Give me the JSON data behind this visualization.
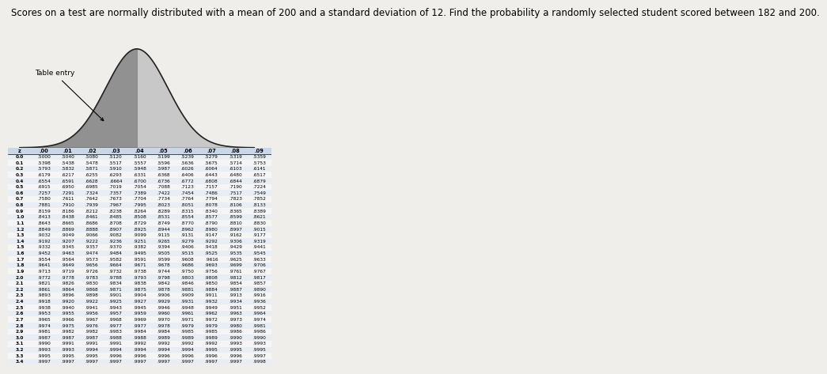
{
  "title": "Scores on a test are normally distributed with a mean of 200 and a standard deviation of 12. Find the probability a randomly selected student scored between 182 and 200.",
  "title_fontsize": 8.5,
  "table_entry_label": "Table entry",
  "z_label": "z",
  "bg_color": "#f0eeeb",
  "z_col_header": [
    "z",
    ".00",
    ".01",
    ".02",
    ".03",
    ".04",
    ".05",
    ".06",
    ".07",
    ".08",
    ".09"
  ],
  "table_data": [
    [
      "0.0",
      ".5000",
      ".5040",
      ".5080",
      ".5120",
      ".5160",
      ".5199",
      ".5239",
      ".5279",
      ".5319",
      ".5359"
    ],
    [
      "0.1",
      ".5398",
      ".5438",
      ".5478",
      ".5517",
      ".5557",
      ".5596",
      ".5636",
      ".5675",
      ".5714",
      ".5753"
    ],
    [
      "0.2",
      ".5793",
      ".5832",
      ".5871",
      ".5910",
      ".5948",
      ".5987",
      ".6026",
      ".6064",
      ".6103",
      ".6141"
    ],
    [
      "0.3",
      ".6179",
      ".6217",
      ".6255",
      ".6293",
      ".6331",
      ".6368",
      ".6406",
      ".6443",
      ".6480",
      ".6517"
    ],
    [
      "0.4",
      ".6554",
      ".6591",
      ".6628",
      ".6664",
      ".6700",
      ".6736",
      ".6772",
      ".6808",
      ".6844",
      ".6879"
    ],
    [
      "0.5",
      ".6915",
      ".6950",
      ".6985",
      ".7019",
      ".7054",
      ".7088",
      ".7123",
      ".7157",
      ".7190",
      ".7224"
    ],
    [
      "0.6",
      ".7257",
      ".7291",
      ".7324",
      ".7357",
      ".7389",
      ".7422",
      ".7454",
      ".7486",
      ".7517",
      ".7549"
    ],
    [
      "0.7",
      ".7580",
      ".7611",
      ".7642",
      ".7673",
      ".7704",
      ".7734",
      ".7764",
      ".7794",
      ".7823",
      ".7852"
    ],
    [
      "0.8",
      ".7881",
      ".7910",
      ".7939",
      ".7967",
      ".7995",
      ".8023",
      ".8051",
      ".8078",
      ".8106",
      ".8133"
    ],
    [
      "0.9",
      ".8159",
      ".8186",
      ".8212",
      ".8238",
      ".8264",
      ".8289",
      ".8315",
      ".8340",
      ".8365",
      ".8389"
    ],
    [
      "1.0",
      ".8413",
      ".8438",
      ".8461",
      ".8485",
      ".8508",
      ".8531",
      ".8554",
      ".8577",
      ".8599",
      ".8621"
    ],
    [
      "1.1",
      ".8643",
      ".8665",
      ".8686",
      ".8708",
      ".8729",
      ".8749",
      ".8770",
      ".8790",
      ".8810",
      ".8830"
    ],
    [
      "1.2",
      ".8849",
      ".8869",
      ".8888",
      ".8907",
      ".8925",
      ".8944",
      ".8962",
      ".8980",
      ".8997",
      ".9015"
    ],
    [
      "1.3",
      ".9032",
      ".9049",
      ".9066",
      ".9082",
      ".9099",
      ".9115",
      ".9131",
      ".9147",
      ".9162",
      ".9177"
    ],
    [
      "1.4",
      ".9192",
      ".9207",
      ".9222",
      ".9236",
      ".9251",
      ".9265",
      ".9279",
      ".9292",
      ".9306",
      ".9319"
    ],
    [
      "1.5",
      ".9332",
      ".9345",
      ".9357",
      ".9370",
      ".9382",
      ".9394",
      ".9406",
      ".9418",
      ".9429",
      ".9441"
    ],
    [
      "1.6",
      ".9452",
      ".9463",
      ".9474",
      ".9484",
      ".9495",
      ".9505",
      ".9515",
      ".9525",
      ".9535",
      ".9545"
    ],
    [
      "1.7",
      ".9554",
      ".9564",
      ".9573",
      ".9582",
      ".9591",
      ".9599",
      ".9608",
      ".9616",
      ".9625",
      ".9633"
    ],
    [
      "1.8",
      ".9641",
      ".9649",
      ".9656",
      ".9664",
      ".9671",
      ".9678",
      ".9686",
      ".9693",
      ".9699",
      ".9706"
    ],
    [
      "1.9",
      ".9713",
      ".9719",
      ".9726",
      ".9732",
      ".9738",
      ".9744",
      ".9750",
      ".9756",
      ".9761",
      ".9767"
    ],
    [
      "2.0",
      ".9772",
      ".9778",
      ".9783",
      ".9788",
      ".9793",
      ".9798",
      ".9803",
      ".9808",
      ".9812",
      ".9817"
    ],
    [
      "2.1",
      ".9821",
      ".9826",
      ".9830",
      ".9834",
      ".9838",
      ".9842",
      ".9846",
      ".9850",
      ".9854",
      ".9857"
    ],
    [
      "2.2",
      ".9861",
      ".9864",
      ".9868",
      ".9871",
      ".9875",
      ".9878",
      ".9881",
      ".9884",
      ".9887",
      ".9890"
    ],
    [
      "2.3",
      ".9893",
      ".9896",
      ".9898",
      ".9901",
      ".9904",
      ".9906",
      ".9909",
      ".9911",
      ".9913",
      ".9916"
    ],
    [
      "2.4",
      ".9918",
      ".9920",
      ".9922",
      ".9925",
      ".9927",
      ".9929",
      ".9931",
      ".9932",
      ".9934",
      ".9936"
    ],
    [
      "2.5",
      ".9938",
      ".9940",
      ".9941",
      ".9943",
      ".9945",
      ".9946",
      ".9948",
      ".9949",
      ".9951",
      ".9952"
    ],
    [
      "2.6",
      ".9953",
      ".9955",
      ".9956",
      ".9957",
      ".9959",
      ".9960",
      ".9961",
      ".9962",
      ".9963",
      ".9964"
    ],
    [
      "2.7",
      ".9965",
      ".9966",
      ".9967",
      ".9968",
      ".9969",
      ".9970",
      ".9971",
      ".9972",
      ".9973",
      ".9974"
    ],
    [
      "2.8",
      ".9974",
      ".9975",
      ".9976",
      ".9977",
      ".9977",
      ".9978",
      ".9979",
      ".9979",
      ".9980",
      ".9981"
    ],
    [
      "2.9",
      ".9981",
      ".9982",
      ".9982",
      ".9983",
      ".9984",
      ".9984",
      ".9985",
      ".9985",
      ".9986",
      ".9986"
    ],
    [
      "3.0",
      ".9987",
      ".9987",
      ".9987",
      ".9988",
      ".9988",
      ".9989",
      ".9989",
      ".9989",
      ".9990",
      ".9990"
    ],
    [
      "3.1",
      ".9990",
      ".9991",
      ".9991",
      ".9991",
      ".9992",
      ".9992",
      ".9992",
      ".9992",
      ".9993",
      ".9993"
    ],
    [
      "3.2",
      ".9993",
      ".9993",
      ".9994",
      ".9994",
      ".9994",
      ".9994",
      ".9994",
      ".9995",
      ".9995",
      ".9995"
    ],
    [
      "3.3",
      ".9995",
      ".9995",
      ".9995",
      ".9996",
      ".9996",
      ".9996",
      ".9996",
      ".9996",
      ".9996",
      ".9997"
    ],
    [
      "3.4",
      ".9997",
      ".9997",
      ".9997",
      ".9997",
      ".9997",
      ".9997",
      ".9997",
      ".9997",
      ".9997",
      ".9998"
    ]
  ],
  "bg_color_even": "#e8eef4",
  "bg_color_odd": "#f5f5f5"
}
